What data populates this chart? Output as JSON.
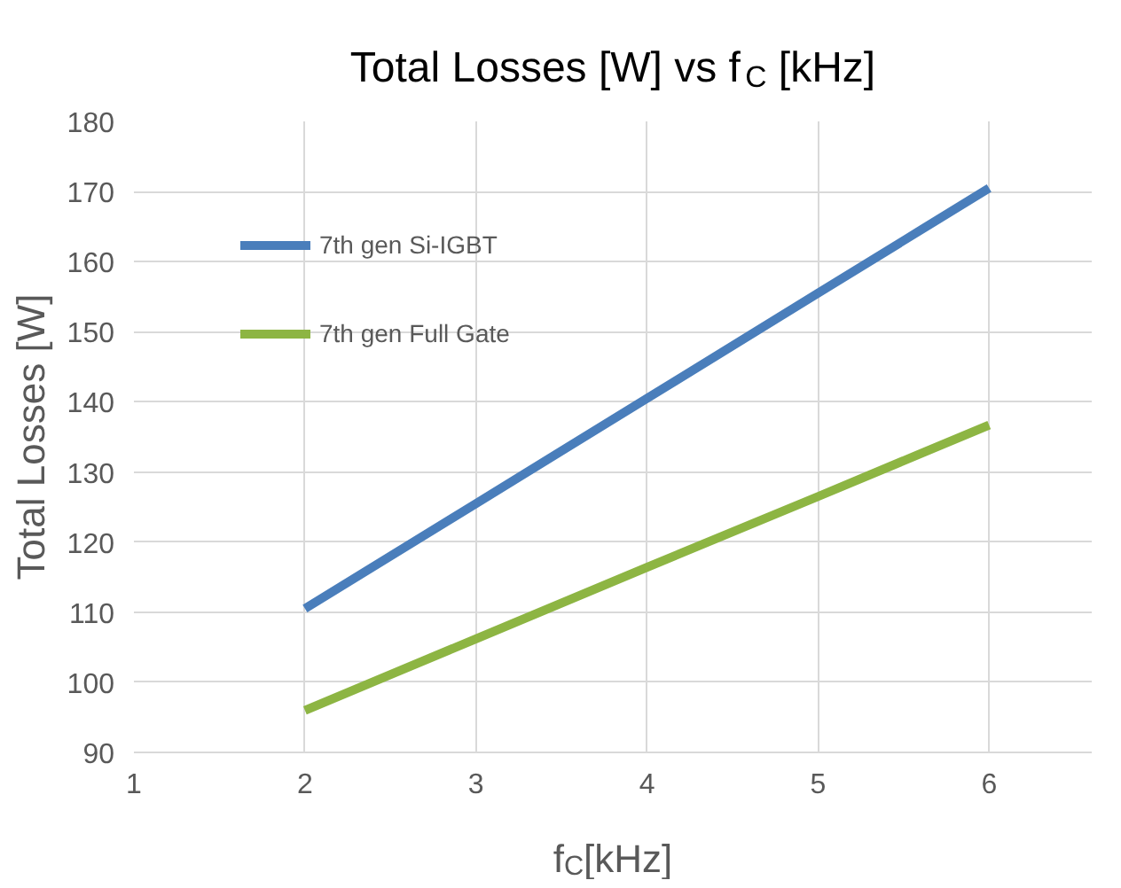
{
  "chart_data": {
    "type": "line",
    "title": "Total Losses [W] vs f$_{C}$ [kHz]",
    "xlabel": "f$_{C}$[kHz]",
    "ylabel": "Total Losses [W]",
    "x": [
      2,
      3,
      4,
      5,
      6
    ],
    "series": [
      {
        "name": "7th gen Si-IGBT",
        "color": "#4a7ebb",
        "values": [
          110.5,
          125.5,
          140.5,
          155.5,
          170.5
        ]
      },
      {
        "name": "7th gen Full Gate",
        "color": "#8db543",
        "values": [
          96,
          106.2,
          116.4,
          126.5,
          136.7
        ]
      }
    ],
    "xlim": [
      1,
      6.6
    ],
    "xticks": [
      1,
      2,
      3,
      4,
      5,
      6
    ],
    "ylim": [
      90,
      180
    ],
    "yticks": [
      90,
      100,
      110,
      120,
      130,
      140,
      150,
      160,
      170,
      180
    ],
    "grid": true,
    "legend": "top left",
    "marker": "none",
    "line_style": "solid"
  }
}
